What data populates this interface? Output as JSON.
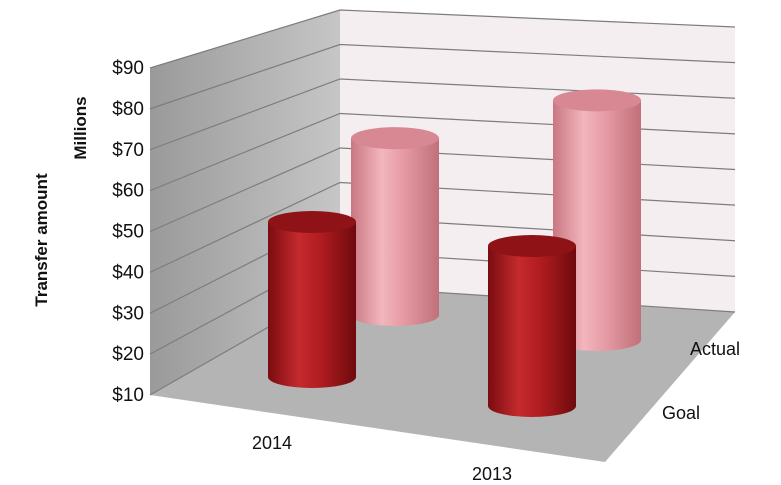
{
  "chart_data": {
    "type": "bar",
    "style": "3d-cylinder",
    "categories": [
      "2014",
      "2013"
    ],
    "depth_categories": [
      "Goal",
      "Actual"
    ],
    "series": [
      {
        "name": "Goal",
        "values": [
          50,
          50
        ]
      },
      {
        "name": "Actual",
        "values": [
          64,
          81
        ]
      }
    ],
    "ylim": [
      10,
      90
    ],
    "y_ticks": [
      "$90",
      "$80",
      "$70",
      "$60",
      "$50",
      "$40",
      "$30",
      "$20",
      "$10"
    ],
    "y_tick_values": [
      90,
      80,
      70,
      60,
      50,
      40,
      30,
      20,
      10
    ],
    "ylabel": "Transfer amount",
    "yunits": "Millions",
    "grid": true,
    "legend": "none",
    "colors": {
      "goal": "#b01c20",
      "actual": "#e59aa4",
      "wall": "#a9a9a9",
      "back_wall": "#f4eef0",
      "floor": "#b4b4b4"
    }
  }
}
